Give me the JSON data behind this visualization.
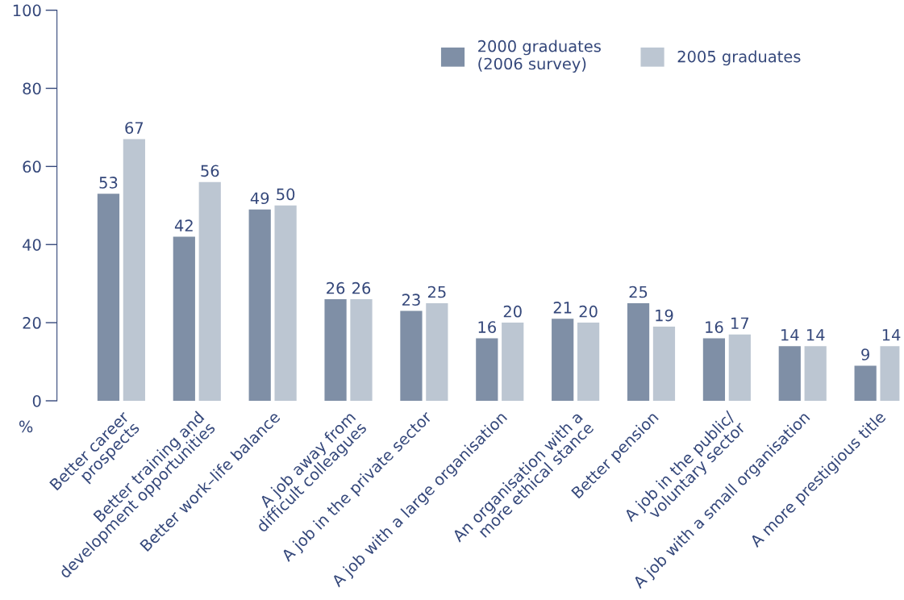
{
  "chart_data": {
    "type": "bar",
    "ylabel": "%",
    "categories": [
      "Better career\nprospects",
      "Better training and\ndevelopment opportunities",
      "Better work–life balance",
      "A job away from\ndifficult colleagues",
      "A job in the private sector",
      "A job with a large organisation",
      "An organisation with a\nmore ethical stance",
      "Better pension",
      "A job in the public/\nvoluntary sector",
      "A job with a small organisation",
      "A more prestigious title"
    ],
    "series": [
      {
        "name": "2000 graduates\n(2006 survey)",
        "color": "#7f8fa6",
        "values": [
          53,
          42,
          49,
          26,
          23,
          16,
          21,
          25,
          16,
          14,
          9
        ]
      },
      {
        "name": "2005 graduates",
        "color": "#bcc6d2",
        "values": [
          67,
          56,
          50,
          26,
          25,
          20,
          20,
          19,
          17,
          14,
          14
        ]
      }
    ],
    "ylim": [
      0,
      100
    ],
    "yticks": [
      0,
      20,
      40,
      60,
      80,
      100
    ],
    "data_labels": true,
    "grid": false,
    "legend": "top right"
  }
}
